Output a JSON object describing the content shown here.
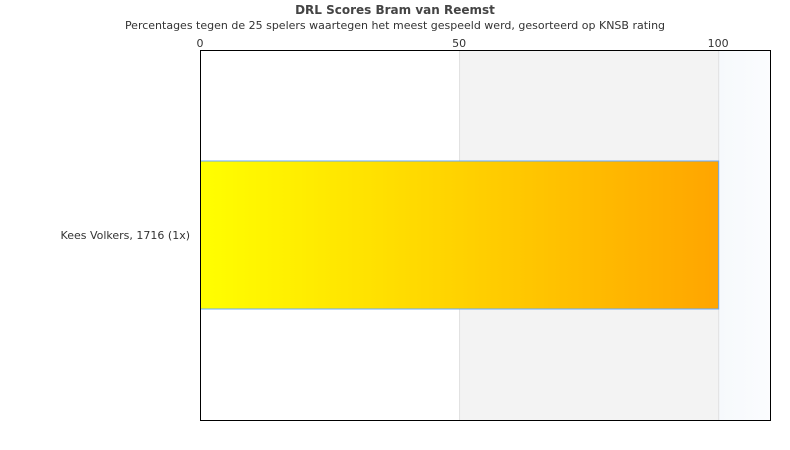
{
  "chart_data": {
    "type": "bar",
    "orientation": "horizontal",
    "title": "DRL Scores Bram van Reemst",
    "subtitle": "Percentages tegen de 25 spelers waartegen het meest gespeeld werd, gesorteerd op KNSB rating",
    "categories": [
      "Kees Volkers, 1716 (1x)"
    ],
    "values": [
      100
    ],
    "xlim": [
      0,
      110
    ],
    "xticks": [
      "0",
      "50",
      "100"
    ],
    "xaxis_position": "top",
    "bar_gradient": [
      "#ffff00",
      "#ffa500"
    ],
    "bar_border": "#66aaff",
    "band_colors": [
      "#ffffff",
      "#f3f3f3",
      "#f8fbfd"
    ]
  }
}
